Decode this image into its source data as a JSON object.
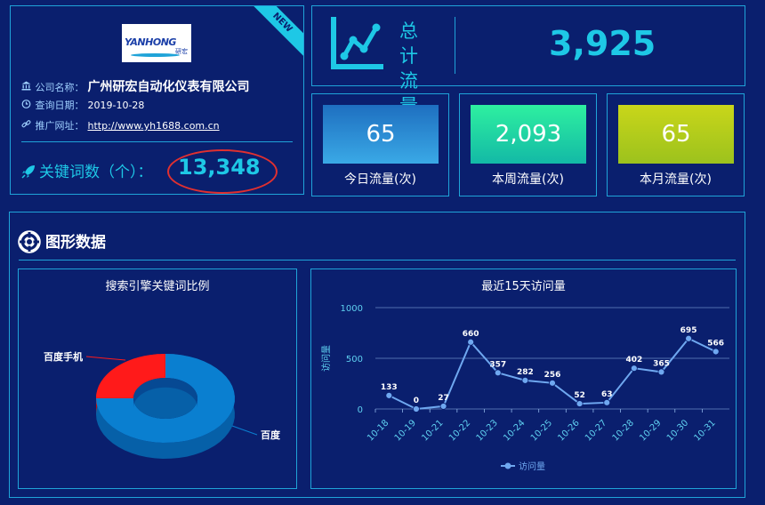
{
  "company": {
    "badge": "NEW",
    "logo_text": "YANHONG",
    "logo_sub": "研宏",
    "name_label": "公司名称：",
    "name": "广州研宏自动化仪表有限公司",
    "date_label": "查询日期：",
    "date": "2019-10-28",
    "site_label": "推广网址：",
    "site": "http://www.yh1688.com.cn",
    "keyword_label": "关键词数（个）：",
    "keyword_count": "13,348"
  },
  "total": {
    "label": "总计流量",
    "value": "3,925"
  },
  "stats": [
    {
      "value": "65",
      "label": "今日流量(次)"
    },
    {
      "value": "2,093",
      "label": "本周流量(次)"
    },
    {
      "value": "65",
      "label": "本月流量(次)"
    }
  ],
  "section_title": "图形数据",
  "icons": {
    "bank": "bank-icon",
    "clock": "clock-icon",
    "link": "link-icon",
    "rocket": "rocket-icon",
    "chart": "line-chart-icon",
    "lifebuoy": "lifebuoy-icon"
  },
  "colors": {
    "background": "#0a1f6e",
    "border": "#1fa3d8",
    "accent": "#1ec8e6",
    "pie_baidu": "#0a7fd0",
    "pie_mobile": "#ff1a1a",
    "line": "#6fa8f0"
  },
  "chart_data": [
    {
      "type": "pie",
      "title": "搜索引擎关键词比例",
      "slices": [
        {
          "label": "百度",
          "value": 75
        },
        {
          "label": "百度手机",
          "value": 25
        }
      ]
    },
    {
      "type": "line",
      "title": "最近15天访问量",
      "ylabel": "访问量",
      "ylim": [
        0,
        1000
      ],
      "yticks": [
        0,
        500,
        1000
      ],
      "grid": true,
      "legend": "bottom",
      "categories": [
        "10-18",
        "10-19",
        "10-21",
        "10-22",
        "10-23",
        "10-24",
        "10-25",
        "10-26",
        "10-27",
        "10-28",
        "10-29",
        "10-30",
        "10-31"
      ],
      "series": [
        {
          "name": "访问量",
          "values": [
            133,
            0,
            27,
            660,
            357,
            282,
            256,
            52,
            63,
            402,
            365,
            695,
            566
          ]
        }
      ]
    }
  ]
}
